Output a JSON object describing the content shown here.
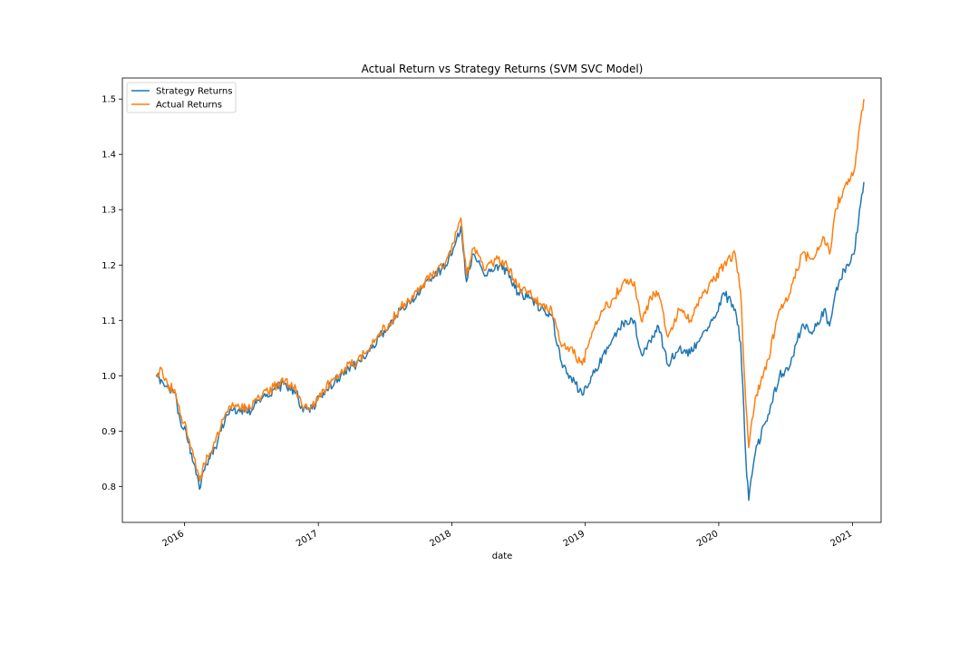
{
  "chart_data": {
    "type": "line",
    "title": "Actual Return vs Strategy Returns (SVM SVC Model)",
    "xlabel": "date",
    "ylabel": "",
    "xlim": [
      "2015-07-15",
      "2021-03-20"
    ],
    "ylim": [
      0.735,
      1.538
    ],
    "x_ticks": [
      "2016",
      "2017",
      "2018",
      "2019",
      "2020",
      "2021"
    ],
    "y_ticks": [
      0.8,
      0.9,
      1.0,
      1.1,
      1.2,
      1.3,
      1.4,
      1.5
    ],
    "grid": false,
    "legend_position": "upper-left",
    "series": [
      {
        "name": "Strategy Returns",
        "color": "#1f77b4",
        "points": [
          [
            "2015-10-15",
            1.0
          ],
          [
            "2015-11-01",
            0.99
          ],
          [
            "2015-11-20",
            0.975
          ],
          [
            "2015-12-05",
            0.97
          ],
          [
            "2015-12-20",
            0.92
          ],
          [
            "2016-01-05",
            0.9
          ],
          [
            "2016-01-20",
            0.86
          ],
          [
            "2016-02-05",
            0.82
          ],
          [
            "2016-02-11",
            0.795
          ],
          [
            "2016-02-25",
            0.83
          ],
          [
            "2016-03-10",
            0.85
          ],
          [
            "2016-03-25",
            0.87
          ],
          [
            "2016-04-10",
            0.9
          ],
          [
            "2016-04-25",
            0.93
          ],
          [
            "2016-05-05",
            0.94
          ],
          [
            "2016-07-01",
            0.935
          ],
          [
            "2016-07-15",
            0.95
          ],
          [
            "2016-08-01",
            0.96
          ],
          [
            "2016-09-01",
            0.975
          ],
          [
            "2016-10-01",
            0.985
          ],
          [
            "2016-11-01",
            0.97
          ],
          [
            "2016-11-20",
            0.935
          ],
          [
            "2016-12-15",
            0.94
          ],
          [
            "2017-01-15",
            0.97
          ],
          [
            "2017-02-15",
            0.99
          ],
          [
            "2017-03-15",
            1.01
          ],
          [
            "2017-04-15",
            1.02
          ],
          [
            "2017-05-15",
            1.04
          ],
          [
            "2017-06-15",
            1.07
          ],
          [
            "2017-07-15",
            1.09
          ],
          [
            "2017-08-15",
            1.12
          ],
          [
            "2017-09-15",
            1.14
          ],
          [
            "2017-10-15",
            1.16
          ],
          [
            "2017-11-15",
            1.18
          ],
          [
            "2017-12-15",
            1.2
          ],
          [
            "2018-01-05",
            1.23
          ],
          [
            "2018-01-26",
            1.27
          ],
          [
            "2018-02-10",
            1.17
          ],
          [
            "2018-03-01",
            1.22
          ],
          [
            "2018-04-01",
            1.18
          ],
          [
            "2018-05-01",
            1.2
          ],
          [
            "2018-06-01",
            1.19
          ],
          [
            "2018-07-01",
            1.15
          ],
          [
            "2018-08-01",
            1.14
          ],
          [
            "2018-09-01",
            1.12
          ],
          [
            "2018-10-01",
            1.11
          ],
          [
            "2018-10-25",
            1.03
          ],
          [
            "2018-11-20",
            1.0
          ],
          [
            "2018-12-24",
            0.965
          ],
          [
            "2019-01-20",
            1.0
          ],
          [
            "2019-02-20",
            1.04
          ],
          [
            "2019-03-20",
            1.07
          ],
          [
            "2019-04-20",
            1.1
          ],
          [
            "2019-05-15",
            1.1
          ],
          [
            "2019-06-03",
            1.04
          ],
          [
            "2019-06-30",
            1.06
          ],
          [
            "2019-07-20",
            1.09
          ],
          [
            "2019-08-15",
            1.02
          ],
          [
            "2019-09-15",
            1.05
          ],
          [
            "2019-10-15",
            1.04
          ],
          [
            "2019-11-15",
            1.07
          ],
          [
            "2019-12-15",
            1.1
          ],
          [
            "2020-01-15",
            1.15
          ],
          [
            "2020-02-15",
            1.12
          ],
          [
            "2020-03-01",
            1.06
          ],
          [
            "2020-03-15",
            0.85
          ],
          [
            "2020-03-23",
            0.775
          ],
          [
            "2020-04-10",
            0.86
          ],
          [
            "2020-05-15",
            0.93
          ],
          [
            "2020-06-15",
            1.0
          ],
          [
            "2020-07-15",
            1.02
          ],
          [
            "2020-08-15",
            1.09
          ],
          [
            "2020-09-15",
            1.08
          ],
          [
            "2020-10-15",
            1.12
          ],
          [
            "2020-10-30",
            1.09
          ],
          [
            "2020-11-15",
            1.15
          ],
          [
            "2020-12-15",
            1.2
          ],
          [
            "2021-01-05",
            1.22
          ],
          [
            "2021-01-20",
            1.3
          ],
          [
            "2021-02-01",
            1.35
          ]
        ]
      },
      {
        "name": "Actual Returns",
        "color": "#ff7f0e",
        "points": [
          [
            "2015-10-15",
            1.0
          ],
          [
            "2015-11-01",
            1.01
          ],
          [
            "2015-11-20",
            0.98
          ],
          [
            "2015-12-05",
            0.975
          ],
          [
            "2015-12-20",
            0.93
          ],
          [
            "2016-01-05",
            0.91
          ],
          [
            "2016-01-20",
            0.87
          ],
          [
            "2016-02-05",
            0.83
          ],
          [
            "2016-02-11",
            0.81
          ],
          [
            "2016-02-25",
            0.84
          ],
          [
            "2016-03-10",
            0.86
          ],
          [
            "2016-03-25",
            0.88
          ],
          [
            "2016-04-10",
            0.91
          ],
          [
            "2016-04-25",
            0.935
          ],
          [
            "2016-05-05",
            0.945
          ],
          [
            "2016-07-01",
            0.94
          ],
          [
            "2016-07-15",
            0.955
          ],
          [
            "2016-08-01",
            0.965
          ],
          [
            "2016-09-01",
            0.98
          ],
          [
            "2016-10-01",
            0.99
          ],
          [
            "2016-11-01",
            0.975
          ],
          [
            "2016-11-20",
            0.94
          ],
          [
            "2016-12-15",
            0.945
          ],
          [
            "2017-01-15",
            0.975
          ],
          [
            "2017-02-15",
            0.995
          ],
          [
            "2017-03-15",
            1.015
          ],
          [
            "2017-04-15",
            1.025
          ],
          [
            "2017-05-15",
            1.045
          ],
          [
            "2017-06-15",
            1.075
          ],
          [
            "2017-07-15",
            1.095
          ],
          [
            "2017-08-15",
            1.125
          ],
          [
            "2017-09-15",
            1.145
          ],
          [
            "2017-10-15",
            1.165
          ],
          [
            "2017-11-15",
            1.185
          ],
          [
            "2017-12-15",
            1.205
          ],
          [
            "2018-01-05",
            1.24
          ],
          [
            "2018-01-26",
            1.285
          ],
          [
            "2018-02-10",
            1.18
          ],
          [
            "2018-03-01",
            1.23
          ],
          [
            "2018-04-01",
            1.19
          ],
          [
            "2018-05-01",
            1.21
          ],
          [
            "2018-06-01",
            1.2
          ],
          [
            "2018-07-01",
            1.16
          ],
          [
            "2018-08-01",
            1.15
          ],
          [
            "2018-09-01",
            1.13
          ],
          [
            "2018-10-01",
            1.12
          ],
          [
            "2018-10-25",
            1.06
          ],
          [
            "2018-11-20",
            1.05
          ],
          [
            "2018-12-24",
            1.02
          ],
          [
            "2019-01-20",
            1.08
          ],
          [
            "2019-02-20",
            1.12
          ],
          [
            "2019-03-20",
            1.14
          ],
          [
            "2019-04-20",
            1.175
          ],
          [
            "2019-05-15",
            1.17
          ],
          [
            "2019-06-03",
            1.1
          ],
          [
            "2019-06-30",
            1.14
          ],
          [
            "2019-07-20",
            1.15
          ],
          [
            "2019-08-15",
            1.07
          ],
          [
            "2019-09-15",
            1.12
          ],
          [
            "2019-10-15",
            1.1
          ],
          [
            "2019-11-15",
            1.14
          ],
          [
            "2019-12-15",
            1.17
          ],
          [
            "2020-01-15",
            1.2
          ],
          [
            "2020-02-15",
            1.22
          ],
          [
            "2020-03-01",
            1.15
          ],
          [
            "2020-03-15",
            0.95
          ],
          [
            "2020-03-23",
            0.87
          ],
          [
            "2020-04-10",
            0.96
          ],
          [
            "2020-05-15",
            1.03
          ],
          [
            "2020-06-15",
            1.12
          ],
          [
            "2020-07-15",
            1.15
          ],
          [
            "2020-08-15",
            1.22
          ],
          [
            "2020-09-15",
            1.21
          ],
          [
            "2020-10-15",
            1.25
          ],
          [
            "2020-10-30",
            1.22
          ],
          [
            "2020-11-15",
            1.3
          ],
          [
            "2020-12-15",
            1.35
          ],
          [
            "2021-01-05",
            1.37
          ],
          [
            "2021-01-20",
            1.45
          ],
          [
            "2021-02-01",
            1.5
          ]
        ]
      }
    ]
  }
}
